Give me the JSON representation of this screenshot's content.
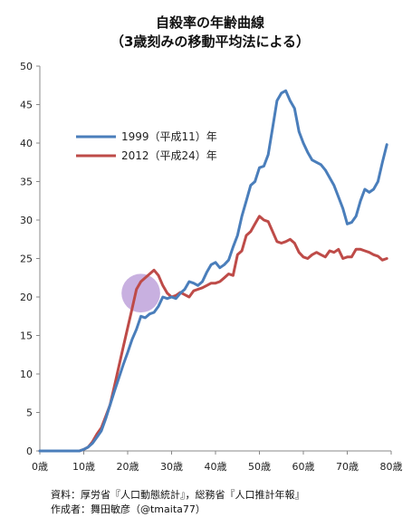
{
  "chart_data": {
    "type": "line",
    "title": "自殺率の年齢曲線",
    "subtitle": "（3歳刻みの移動平均法による）",
    "xlim": [
      0,
      80
    ],
    "ylim": [
      0,
      50
    ],
    "x_ticks": [
      0,
      10,
      20,
      30,
      40,
      50,
      60,
      70,
      80
    ],
    "x_tick_labels": [
      "0歳",
      "10歳",
      "20歳",
      "30歳",
      "40歳",
      "50歳",
      "60歳",
      "70歳",
      "80歳"
    ],
    "y_ticks": [
      0,
      5,
      10,
      15,
      20,
      25,
      30,
      35,
      40,
      45,
      50
    ],
    "y_tick_labels": [
      "0",
      "5",
      "10",
      "15",
      "20",
      "25",
      "30",
      "35",
      "40",
      "45",
      "50"
    ],
    "grid": false,
    "legend_position": "left-center",
    "series": [
      {
        "name": "1999（平成11）年",
        "color": "#4a7ebb",
        "x": [
          0,
          1,
          2,
          3,
          4,
          5,
          6,
          7,
          8,
          9,
          10,
          11,
          12,
          13,
          14,
          15,
          16,
          17,
          18,
          19,
          20,
          21,
          22,
          23,
          24,
          25,
          26,
          27,
          28,
          29,
          30,
          31,
          32,
          33,
          34,
          35,
          36,
          37,
          38,
          39,
          40,
          41,
          42,
          43,
          44,
          45,
          46,
          47,
          48,
          49,
          50,
          51,
          52,
          53,
          54,
          55,
          56,
          57,
          58,
          59,
          60,
          61,
          62,
          63,
          64,
          65,
          66,
          67,
          68,
          69,
          70,
          71,
          72,
          73,
          74,
          75,
          76,
          77,
          78,
          79
        ],
        "values": [
          0,
          0,
          0,
          0,
          0,
          0,
          0,
          0,
          0,
          0,
          0.2,
          0.5,
          1.0,
          1.8,
          2.6,
          4.2,
          6.0,
          7.8,
          9.5,
          11.2,
          12.8,
          14.5,
          15.8,
          17.5,
          17.3,
          17.8,
          18.0,
          18.8,
          20.0,
          19.8,
          20.0,
          19.8,
          20.5,
          21.0,
          22.0,
          21.8,
          21.5,
          22.0,
          23.2,
          24.2,
          24.5,
          23.8,
          24.2,
          24.8,
          26.5,
          28.0,
          30.5,
          32.5,
          34.5,
          35.0,
          36.8,
          37.0,
          38.5,
          42.0,
          45.5,
          46.5,
          46.8,
          45.5,
          44.5,
          41.5,
          40.0,
          38.8,
          37.8,
          37.5,
          37.2,
          36.5,
          35.5,
          34.5,
          33.0,
          31.5,
          29.5,
          29.7,
          30.5,
          32.5,
          34.0,
          33.6,
          34.0,
          35.0,
          37.5,
          39.8
        ]
      },
      {
        "name": "2012（平成24）年",
        "color": "#be4b48",
        "x": [
          0,
          1,
          2,
          3,
          4,
          5,
          6,
          7,
          8,
          9,
          10,
          11,
          12,
          13,
          14,
          15,
          16,
          17,
          18,
          19,
          20,
          21,
          22,
          23,
          24,
          25,
          26,
          27,
          28,
          29,
          30,
          31,
          32,
          33,
          34,
          35,
          36,
          37,
          38,
          39,
          40,
          41,
          42,
          43,
          44,
          45,
          46,
          47,
          48,
          49,
          50,
          51,
          52,
          53,
          54,
          55,
          56,
          57,
          58,
          59,
          60,
          61,
          62,
          63,
          64,
          65,
          66,
          67,
          68,
          69,
          70,
          71,
          72,
          73,
          74,
          75,
          76,
          77,
          78,
          79
        ],
        "values": [
          0,
          0,
          0,
          0,
          0,
          0,
          0,
          0,
          0,
          0,
          0.2,
          0.5,
          1.2,
          2.2,
          3.0,
          4.5,
          6.0,
          8.5,
          11.0,
          13.5,
          16.0,
          18.5,
          21.0,
          22.0,
          22.5,
          23.0,
          23.5,
          22.8,
          21.5,
          20.5,
          20.0,
          20.2,
          20.6,
          20.3,
          20.0,
          20.8,
          21.0,
          21.2,
          21.5,
          21.8,
          21.8,
          22.0,
          22.5,
          23.0,
          22.8,
          25.5,
          26.0,
          28.0,
          28.5,
          29.5,
          30.5,
          30.0,
          29.8,
          28.5,
          27.2,
          27.0,
          27.2,
          27.5,
          27.0,
          25.8,
          25.2,
          25.0,
          25.5,
          25.8,
          25.5,
          25.2,
          26.0,
          25.8,
          26.2,
          25.0,
          25.2,
          25.2,
          26.2,
          26.2,
          26.0,
          25.8,
          25.5,
          25.3,
          24.8,
          25.0
        ]
      }
    ],
    "annotation": {
      "type": "circle",
      "center_x": 23,
      "center_y": 20.5,
      "color": "#9b6fc6",
      "fill_opacity": 0.55
    },
    "source_lines": [
      "資料：厚労省『人口動態統計』，総務省『人口推計年報』",
      "作成者：舞田敏彦（@tmaita77）"
    ]
  }
}
